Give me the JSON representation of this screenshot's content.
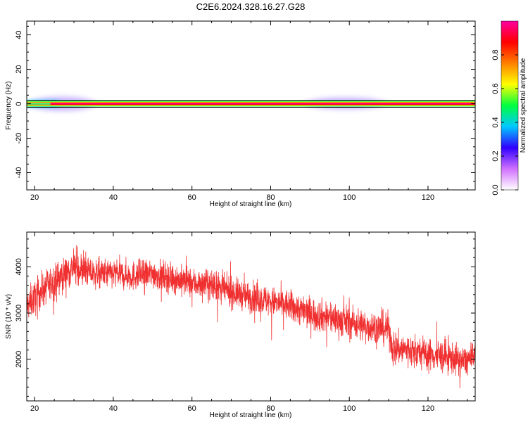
{
  "title": "C2E6.2024.328.16.27.G28",
  "chart_data": [
    {
      "type": "heatmap",
      "xlabel": "Height of straight line (km)",
      "ylabel": "Frequency (Hz)",
      "xlim": [
        18,
        132
      ],
      "ylim": [
        -50,
        48
      ],
      "x_ticks": [
        20,
        40,
        60,
        80,
        100,
        120
      ],
      "y_ticks": [
        40,
        20,
        0,
        -20,
        -40
      ],
      "band": {
        "center_hz": 0,
        "filter_limits_hz": [
          -2,
          2
        ],
        "weak_patches": [
          {
            "x": [
              18,
              36
            ],
            "y": [
              -4,
              4
            ]
          },
          {
            "x": [
              88,
              110
            ],
            "y": [
              -3,
              3.5
            ]
          }
        ]
      },
      "colorbar": {
        "label": "Normalized spectral amplitude",
        "range": [
          0,
          1
        ],
        "ticks": [
          "0.0",
          "0.2",
          "0.4",
          "0.6",
          "0.8"
        ],
        "tick_values": [
          0,
          0.2,
          0.4,
          0.6,
          0.8
        ],
        "colors": [
          "#ffffff",
          "#d070ff",
          "#3000ff",
          "#00c8ff",
          "#00ff40",
          "#ffff00",
          "#ff8000",
          "#ff0000",
          "#ff00a0"
        ]
      },
      "grid": false
    },
    {
      "type": "line",
      "xlabel": "Height of straight line (km)",
      "ylabel": "SNR (10 * v/v)",
      "xlim": [
        18,
        132
      ],
      "ylim": [
        1100,
        4750
      ],
      "x_ticks": [
        20,
        40,
        60,
        80,
        100,
        120
      ],
      "y_ticks": [
        4000,
        3000,
        2000
      ],
      "series_color": "#f03030",
      "trend": [
        {
          "x": 18,
          "mean": 3150,
          "spread": 350
        },
        {
          "x": 22,
          "mean": 3500,
          "spread": 350
        },
        {
          "x": 27,
          "mean": 3800,
          "spread": 350
        },
        {
          "x": 30,
          "mean": 4000,
          "spread": 350
        },
        {
          "x": 35,
          "mean": 3850,
          "spread": 300
        },
        {
          "x": 40,
          "mean": 3850,
          "spread": 300
        },
        {
          "x": 45,
          "mean": 3800,
          "spread": 300
        },
        {
          "x": 50,
          "mean": 3850,
          "spread": 300
        },
        {
          "x": 55,
          "mean": 3750,
          "spread": 300
        },
        {
          "x": 60,
          "mean": 3650,
          "spread": 300
        },
        {
          "x": 65,
          "mean": 3600,
          "spread": 300
        },
        {
          "x": 70,
          "mean": 3450,
          "spread": 300
        },
        {
          "x": 75,
          "mean": 3350,
          "spread": 300
        },
        {
          "x": 80,
          "mean": 3250,
          "spread": 300
        },
        {
          "x": 85,
          "mean": 3150,
          "spread": 320
        },
        {
          "x": 90,
          "mean": 3000,
          "spread": 330
        },
        {
          "x": 95,
          "mean": 2900,
          "spread": 330
        },
        {
          "x": 100,
          "mean": 2800,
          "spread": 330
        },
        {
          "x": 105,
          "mean": 2700,
          "spread": 330
        },
        {
          "x": 110,
          "mean": 2650,
          "spread": 330
        },
        {
          "x": 111,
          "mean": 2250,
          "spread": 350
        },
        {
          "x": 115,
          "mean": 2200,
          "spread": 330
        },
        {
          "x": 120,
          "mean": 2100,
          "spread": 330
        },
        {
          "x": 125,
          "mean": 2050,
          "spread": 330
        },
        {
          "x": 129,
          "mean": 1950,
          "spread": 300
        },
        {
          "x": 132,
          "mean": 2050,
          "spread": 300
        }
      ],
      "grid": false
    }
  ]
}
